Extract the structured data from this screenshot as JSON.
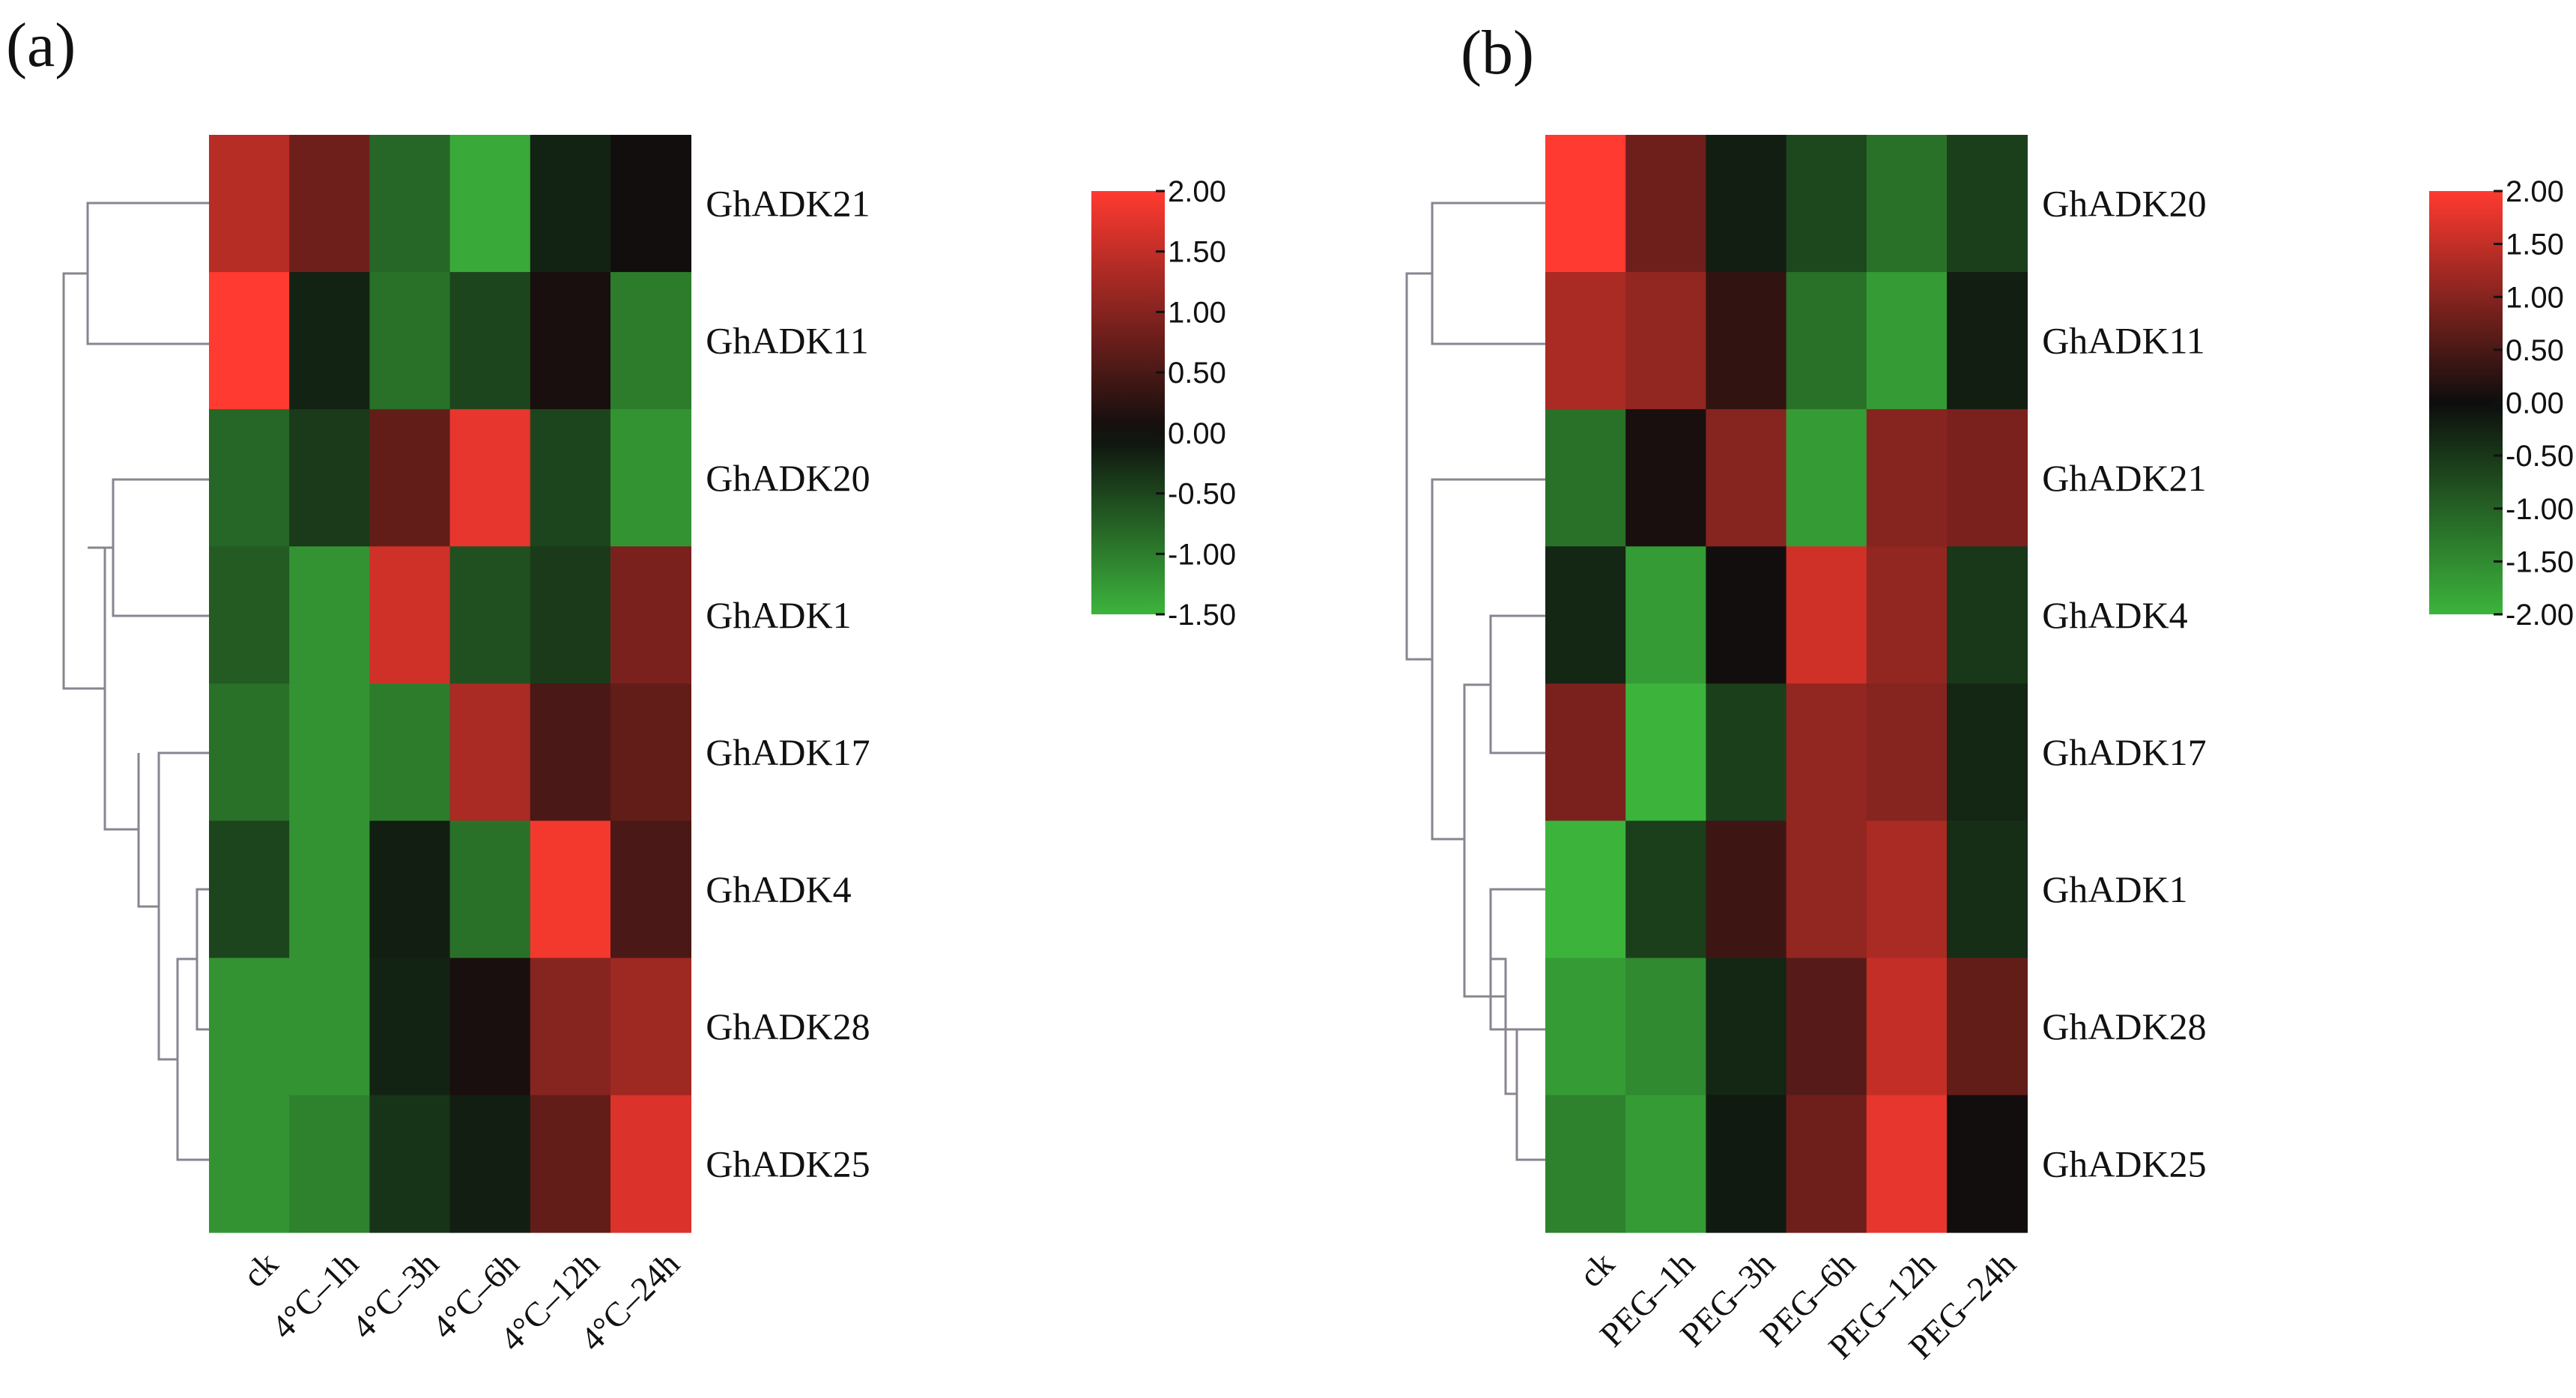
{
  "chart_data": [
    {
      "type": "heatmap",
      "panel_label": "(a)",
      "rows": [
        "GhADK21",
        "GhADK11",
        "GhADK20",
        "GhADK1",
        "GhADK17",
        "GhADK4",
        "GhADK28",
        "GhADK25"
      ],
      "columns": [
        "ck",
        "4°C–1h",
        "4°C–3h",
        "4°C–6h",
        "4°C–12h",
        "4°C–24h"
      ],
      "values": [
        [
          1.4,
          0.8,
          -0.8,
          -1.4,
          -0.2,
          0.05
        ],
        [
          2.0,
          -0.2,
          -0.9,
          -0.5,
          0.1,
          -1.0
        ],
        [
          -0.8,
          -0.4,
          0.7,
          1.8,
          -0.5,
          -1.2
        ],
        [
          -0.7,
          -1.2,
          1.6,
          -0.6,
          -0.4,
          0.9
        ],
        [
          -0.9,
          -1.2,
          -1.0,
          1.3,
          0.5,
          0.7
        ],
        [
          -0.5,
          -1.2,
          -0.15,
          -0.9,
          1.9,
          0.5
        ],
        [
          -1.2,
          -1.2,
          -0.2,
          0.1,
          1.0,
          1.2
        ],
        [
          -1.2,
          -1.05,
          -0.35,
          -0.15,
          0.7,
          1.7
        ]
      ],
      "colorbar": {
        "min": -1.5,
        "max": 2.0,
        "ticks": [
          "2.00",
          "1.50",
          "1.00",
          "0.50",
          "0.00",
          "-0.50",
          "-1.00",
          "-1.50"
        ],
        "low_color": "#3cb43c",
        "mid_color": "#0d0d0d",
        "high_color": "#ff3a30"
      }
    },
    {
      "type": "heatmap",
      "panel_label": "(b)",
      "rows": [
        "GhADK20",
        "GhADK11",
        "GhADK21",
        "GhADK4",
        "GhADK17",
        "GhADK1",
        "GhADK28",
        "GhADK25"
      ],
      "columns": [
        "ck",
        "PEG–1h",
        "PEG–3h",
        "PEG–6h",
        "PEG–12h",
        "PEG–24h"
      ],
      "values": [
        [
          2.0,
          0.8,
          -0.2,
          -0.7,
          -1.2,
          -0.6
        ],
        [
          1.3,
          1.1,
          0.3,
          -1.2,
          -1.7,
          -0.2
        ],
        [
          -1.2,
          0.1,
          1.0,
          -1.7,
          1.0,
          0.9
        ],
        [
          -0.3,
          -1.7,
          0.05,
          1.6,
          1.1,
          -0.5
        ],
        [
          0.9,
          -2.0,
          -0.6,
          1.1,
          1.0,
          -0.3
        ],
        [
          -2.0,
          -0.6,
          0.4,
          1.1,
          1.3,
          -0.4
        ],
        [
          -1.7,
          -1.5,
          -0.3,
          0.6,
          1.5,
          0.7
        ],
        [
          -1.4,
          -1.7,
          -0.15,
          0.8,
          1.8,
          0.05
        ]
      ],
      "colorbar": {
        "min": -2.0,
        "max": 2.0,
        "ticks": [
          "2.00",
          "1.50",
          "1.00",
          "0.50",
          "0.00",
          "-0.50",
          "-1.00",
          "-1.50",
          "-2.00"
        ],
        "low_color": "#3cb43c",
        "mid_color": "#0d0d0d",
        "high_color": "#ff3a30"
      }
    }
  ]
}
